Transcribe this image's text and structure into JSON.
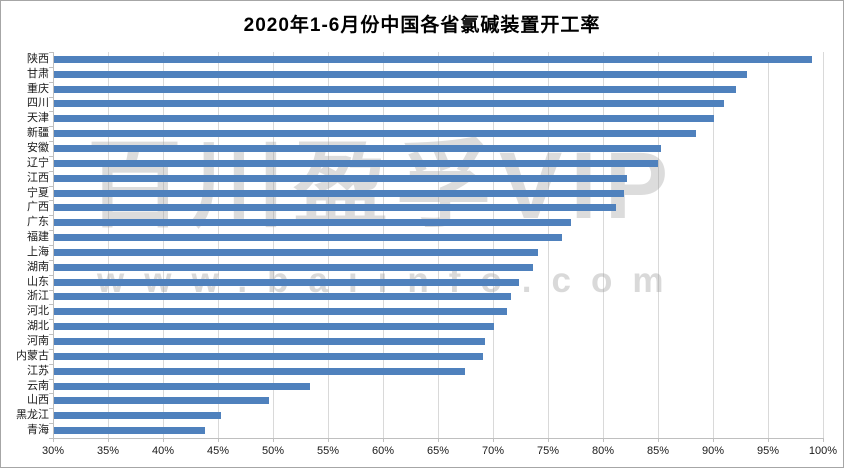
{
  "chart_data": {
    "type": "bar",
    "orientation": "horizontal",
    "title": "2020年1-6月份中国各省氯碱装置开工率",
    "categories": [
      "陕西",
      "甘肃",
      "重庆",
      "四川",
      "天津",
      "新疆",
      "安徽",
      "辽宁",
      "江西",
      "宁夏",
      "广西",
      "广东",
      "福建",
      "上海",
      "湖南",
      "山东",
      "浙江",
      "河北",
      "湖北",
      "河南",
      "内蒙古",
      "江苏",
      "云南",
      "山西",
      "黑龙江",
      "青海"
    ],
    "values": [
      98.9,
      93.0,
      92.0,
      90.9,
      90.0,
      88.4,
      85.2,
      84.9,
      82.1,
      81.8,
      81.1,
      77.0,
      76.2,
      74.0,
      73.5,
      72.3,
      71.5,
      71.2,
      70.0,
      69.2,
      69.0,
      67.4,
      53.3,
      49.5,
      45.2,
      43.7
    ],
    "unit": "%",
    "x_tick_labels": [
      "30%",
      "35%",
      "40%",
      "45%",
      "50%",
      "55%",
      "60%",
      "65%",
      "70%",
      "75%",
      "80%",
      "85%",
      "90%",
      "95%",
      "100%"
    ],
    "xlim": [
      30,
      100
    ],
    "grid": true,
    "legend": "none",
    "bar_color": "#4F81BD"
  },
  "watermark": {
    "line1": "百川盈孚VIP",
    "line2": "www.baiinfo.com"
  },
  "colors": {
    "bar": "#4F81BD",
    "gridline": "#D9D9D9",
    "axis": "#BFBFBF",
    "title_text": "#000000",
    "axis_text": "#1A1A1A",
    "watermark": "#9B9B9B",
    "outer_border": "#A6A6A6",
    "background": "#FFFFFF"
  }
}
